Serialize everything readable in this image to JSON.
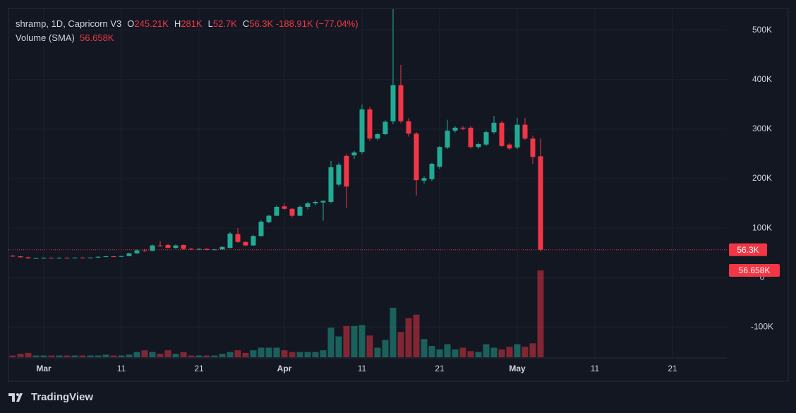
{
  "chart_data": {
    "type": "candlestick",
    "title": "shramp, 1D, Capricorn V3",
    "ohlc_legend": [
      {
        "key": "O",
        "value": "245.21K"
      },
      {
        "key": "H",
        "value": "281K"
      },
      {
        "key": "L",
        "value": "52.7K"
      },
      {
        "key": "C",
        "value": "56.3K"
      }
    ],
    "change": "-188.91K (−77.04%)",
    "indicator": {
      "name": "Volume (SMA)",
      "value": "56.658K"
    },
    "last_price": {
      "value": 56.3,
      "label": "56.3K"
    },
    "indicator_label": "56.658K",
    "branding": "TradingView",
    "up_color": "#22ab94",
    "down_color": "#f23645",
    "categories": [
      null,
      null,
      null,
      null,
      "Mar",
      null,
      null,
      null,
      null,
      null,
      null,
      null,
      null,
      null,
      "11",
      null,
      null,
      null,
      null,
      null,
      null,
      null,
      null,
      null,
      "21",
      null,
      null,
      null,
      null,
      null,
      null,
      null,
      null,
      null,
      null,
      "Apr",
      null,
      null,
      null,
      null,
      null,
      null,
      null,
      null,
      null,
      "11",
      null,
      null,
      null,
      null,
      null,
      null,
      null,
      null,
      null,
      "21",
      null,
      null,
      null,
      null,
      null,
      null,
      null,
      null,
      null,
      "May",
      null,
      null,
      null,
      null,
      null,
      null,
      null,
      null,
      null,
      "11",
      null,
      null,
      null,
      null,
      null,
      null,
      null,
      null,
      null,
      "21"
    ],
    "open": [
      44,
      43,
      41,
      39,
      39.5,
      40,
      39,
      40,
      39.5,
      40.5,
      40,
      40.5,
      42,
      43,
      42,
      43.5,
      49,
      55,
      54,
      65,
      66,
      60,
      66,
      58,
      57,
      58,
      56,
      57,
      60,
      88,
      72,
      65,
      84,
      112,
      125,
      144,
      139,
      125,
      143,
      150,
      152,
      153,
      188,
      246,
      247,
      254,
      340,
      281,
      290,
      316,
      389,
      316,
      291,
      196,
      199,
      224,
      263,
      297,
      303,
      303,
      264,
      269,
      294,
      313,
      269,
      263,
      309,
      281,
      245.21,
      null,
      null,
      null,
      null,
      null,
      null,
      null,
      null,
      null,
      null,
      null,
      null,
      null,
      null,
      null,
      null,
      null
    ],
    "high": [
      46,
      44,
      42,
      40,
      41,
      41,
      41,
      41,
      41,
      42,
      41,
      43,
      44,
      44,
      44,
      50,
      57,
      58,
      67,
      74,
      68,
      67,
      67,
      60,
      59,
      59,
      58,
      63,
      92,
      100,
      74,
      86,
      116,
      127,
      146,
      150,
      141,
      146,
      153,
      156,
      156,
      236,
      232,
      250,
      256,
      350,
      345,
      292,
      318,
      543,
      430,
      322,
      294,
      205,
      232,
      266,
      319,
      306,
      306,
      306,
      273,
      297,
      327,
      317,
      272,
      323,
      323,
      287,
      281,
      null,
      null,
      null,
      null,
      null,
      null,
      null,
      null,
      null,
      null,
      null,
      null,
      null,
      null,
      null,
      null,
      null
    ],
    "low": [
      42,
      40,
      38,
      38,
      38,
      38.5,
      38,
      39,
      39,
      39,
      39,
      40,
      41,
      41,
      41,
      43,
      48,
      52,
      53,
      62,
      59,
      58,
      56,
      56,
      56,
      55,
      55,
      56,
      59,
      70,
      63,
      64,
      83,
      110,
      124,
      137,
      122,
      124,
      138,
      146,
      115,
      150,
      184,
      140,
      240,
      250,
      276,
      277,
      288,
      310,
      312,
      285,
      166,
      190,
      195,
      220,
      260,
      293,
      298,
      261,
      260,
      266,
      290,
      264,
      258,
      260,
      278,
      230,
      52.7,
      null,
      null,
      null,
      null,
      null,
      null,
      null,
      null,
      null,
      null,
      null,
      null,
      null,
      null,
      null,
      null,
      null
    ],
    "close": [
      43,
      41,
      39,
      39.5,
      40,
      39,
      40,
      39.5,
      40.5,
      40,
      40.5,
      42,
      43,
      42,
      43.5,
      49,
      55,
      54,
      65,
      64.5,
      60,
      65,
      58,
      57,
      58,
      56,
      57,
      62,
      89,
      72,
      65,
      84,
      113,
      125,
      143,
      139,
      125,
      143,
      150,
      153,
      155,
      223,
      228,
      184,
      253,
      340,
      281,
      290,
      315,
      389,
      316,
      291,
      197,
      201,
      230,
      264,
      297,
      303,
      301,
      264,
      270,
      294,
      313,
      266,
      261,
      309,
      281,
      244,
      56.3,
      null,
      null,
      null,
      null,
      null,
      null,
      null,
      null,
      null,
      null,
      null,
      null,
      null,
      null,
      null,
      null,
      null
    ],
    "volume": [
      2,
      4,
      5,
      2,
      2,
      2,
      2,
      2,
      2,
      2,
      2,
      2,
      3,
      2,
      2,
      3,
      6,
      8,
      6,
      4,
      8,
      4,
      6,
      2,
      2,
      2,
      2,
      4,
      6,
      8,
      5,
      8,
      11,
      11,
      11,
      8,
      6,
      6,
      6,
      6,
      8,
      34,
      24,
      36,
      36,
      37,
      25,
      11,
      20,
      57,
      29,
      45,
      49,
      21,
      13,
      9,
      15,
      9,
      11,
      7,
      6,
      15,
      11,
      9,
      12,
      15,
      12,
      16,
      100,
      null,
      null,
      null,
      null,
      null,
      null,
      null,
      null,
      null,
      null,
      null,
      null,
      null,
      null,
      null,
      null,
      null
    ],
    "vlim": [
      0,
      100
    ],
    "ylim": [
      -161,
      544
    ],
    "yticks": [
      {
        "value": 500,
        "label": "500K"
      },
      {
        "value": 400,
        "label": "400K"
      },
      {
        "value": 300,
        "label": "300K"
      },
      {
        "value": 200,
        "label": "200K"
      },
      {
        "value": 100,
        "label": "100K"
      },
      0,
      {
        "value": -100,
        "label": "-100K"
      }
    ],
    "grid": true
  }
}
